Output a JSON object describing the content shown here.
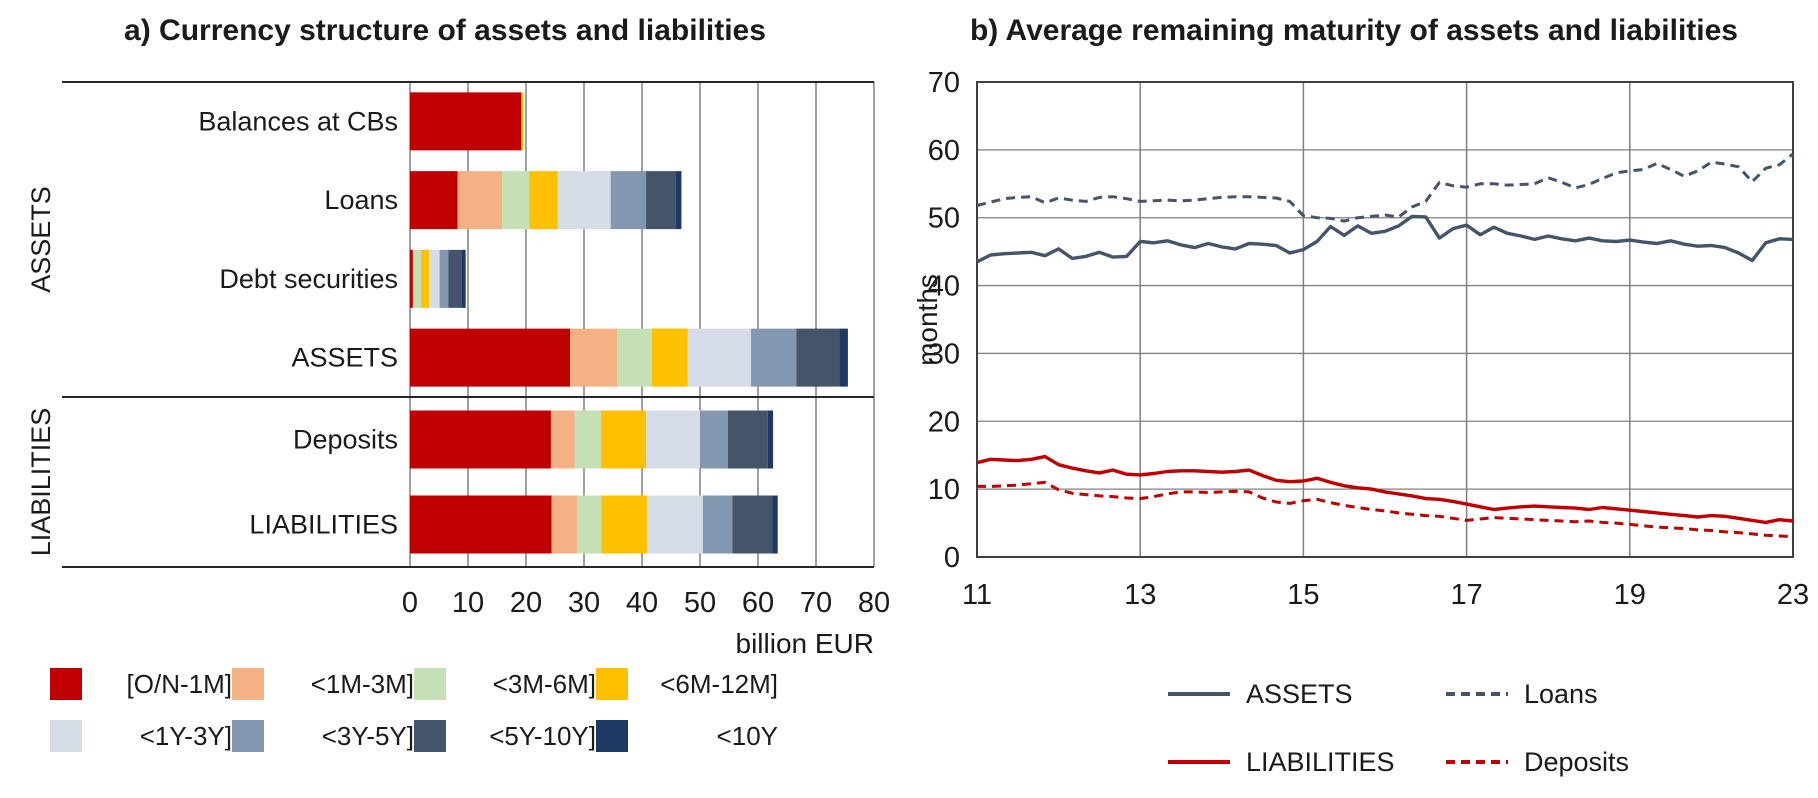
{
  "panel_a": {
    "title": "a) Currency structure of assets and liabilities",
    "axis_caption": "billion EUR",
    "section_labels": [
      "ASSETS",
      "LIABILITIES"
    ]
  },
  "panel_b": {
    "title": "b) Average remaining maturity of assets and liabilities",
    "ylabel": "months"
  },
  "colors": {
    "grid": "#808080",
    "frame_left": "#262626",
    "frame_right": "#404040",
    "text": "#1a1a1a"
  },
  "chart_data": [
    {
      "type": "bar",
      "orientation": "horizontal",
      "title": "a) Currency structure of assets and liabilities",
      "xlabel": "billion EUR",
      "xlim": [
        0,
        80
      ],
      "xticks": [
        0,
        10,
        20,
        30,
        40,
        50,
        60,
        70,
        80
      ],
      "grid": true,
      "legend_position": "bottom",
      "sections": [
        {
          "label": "ASSETS",
          "rows": 4
        },
        {
          "label": "LIABILITIES",
          "rows": 2
        }
      ],
      "categories": [
        "Balances at CBs",
        "Loans",
        "Debt securities",
        "ASSETS",
        "Deposits",
        "LIABILITIES"
      ],
      "series": [
        {
          "name": "[O/N-1M]",
          "color": "#c00000",
          "values": [
            19.2,
            8.2,
            0.5,
            27.6,
            24.3,
            24.4
          ]
        },
        {
          "name": "<1M-3M]",
          "color": "#f4b183",
          "values": [
            0,
            7.7,
            0,
            8.1,
            4.1,
            4.4
          ]
        },
        {
          "name": "<3M-6M]",
          "color": "#c5e0b4",
          "values": [
            0,
            4.7,
            1.4,
            6.0,
            4.5,
            4.2
          ]
        },
        {
          "name": "<6M-12M]",
          "color": "#ffc000",
          "values": [
            0.3,
            4.9,
            1.4,
            6.2,
            7.8,
            7.9
          ]
        },
        {
          "name": "<1Y-3Y]",
          "color": "#d6dce5",
          "values": [
            0,
            9.1,
            1.8,
            10.9,
            9.3,
            9.6
          ]
        },
        {
          "name": "<3Y-5Y]",
          "color": "#8497b0",
          "values": [
            0,
            6.1,
            1.5,
            7.8,
            4.8,
            5.1
          ]
        },
        {
          "name": "<5Y-10Y]",
          "color": "#44546a",
          "values": [
            0,
            5.1,
            2.3,
            7.4,
            6.9,
            6.9
          ]
        },
        {
          "name": "<10Y",
          "color": "#1f3864",
          "values": [
            0,
            1.0,
            0.7,
            1.5,
            0.9,
            0.9
          ]
        }
      ]
    },
    {
      "type": "line",
      "title": "b) Average remaining maturity of assets and liabilities",
      "ylabel": "months",
      "ylim": [
        0,
        70
      ],
      "yticks": [
        0,
        10,
        20,
        30,
        40,
        50,
        60,
        70
      ],
      "xtick_labels": [
        "11",
        "13",
        "15",
        "17",
        "19",
        "23"
      ],
      "grid": true,
      "legend_position": "bottom",
      "series": [
        {
          "name": "ASSETS",
          "color": "#44546a",
          "style": "solid",
          "values": [
            43.5,
            44.5,
            44.7,
            44.8,
            44.9,
            44.4,
            45.4,
            44.0,
            44.3,
            44.9,
            44.2,
            44.3,
            46.5,
            46.3,
            46.6,
            46.0,
            45.6,
            46.2,
            45.7,
            45.4,
            46.2,
            46.1,
            45.9,
            44.8,
            45.3,
            46.5,
            48.7,
            47.4,
            48.8,
            47.7,
            48.0,
            48.8,
            50.2,
            50.1,
            47.0,
            48.4,
            48.9,
            47.5,
            48.6,
            47.7,
            47.3,
            46.8,
            47.3,
            46.9,
            46.6,
            47.0,
            46.6,
            46.5,
            46.7,
            46.4,
            46.2,
            46.6,
            46.1,
            45.8,
            45.9,
            45.6,
            44.8,
            43.7,
            46.3,
            46.9,
            46.8
          ]
        },
        {
          "name": "Loans",
          "color": "#44546a",
          "style": "dashed",
          "values": [
            51.8,
            52.3,
            52.8,
            53.0,
            53.1,
            52.2,
            52.9,
            52.6,
            52.4,
            53.0,
            53.1,
            52.8,
            52.4,
            52.5,
            52.6,
            52.5,
            52.6,
            52.8,
            53.0,
            53.1,
            53.1,
            53.0,
            52.9,
            52.4,
            50.3,
            50.0,
            49.9,
            49.5,
            50.0,
            50.2,
            50.4,
            50.1,
            51.6,
            52.4,
            55.2,
            54.7,
            54.5,
            55.0,
            55.0,
            54.8,
            54.9,
            55.0,
            55.9,
            55.2,
            54.4,
            54.9,
            55.8,
            56.6,
            56.9,
            57.1,
            58.0,
            57.1,
            56.1,
            56.9,
            58.2,
            57.9,
            57.5,
            55.3,
            57.3,
            57.8,
            59.4
          ]
        },
        {
          "name": "LIABILITIES",
          "color": "#c00000",
          "style": "solid",
          "values": [
            13.9,
            14.4,
            14.3,
            14.2,
            14.4,
            14.8,
            13.6,
            13.1,
            12.7,
            12.4,
            12.8,
            12.2,
            12.1,
            12.3,
            12.6,
            12.7,
            12.7,
            12.6,
            12.5,
            12.6,
            12.8,
            12.0,
            11.3,
            11.1,
            11.2,
            11.6,
            11.0,
            10.5,
            10.2,
            10.0,
            9.6,
            9.3,
            9.0,
            8.6,
            8.5,
            8.2,
            7.8,
            7.4,
            7.0,
            7.2,
            7.4,
            7.5,
            7.4,
            7.3,
            7.2,
            7.0,
            7.3,
            7.1,
            6.9,
            6.7,
            6.5,
            6.3,
            6.1,
            5.9,
            6.1,
            6.0,
            5.7,
            5.4,
            5.1,
            5.5,
            5.3
          ]
        },
        {
          "name": "Deposits",
          "color": "#c00000",
          "style": "dashed",
          "values": [
            10.4,
            10.4,
            10.5,
            10.6,
            10.8,
            11.0,
            9.9,
            9.4,
            9.2,
            9.0,
            8.9,
            8.7,
            8.6,
            8.9,
            9.3,
            9.6,
            9.6,
            9.5,
            9.6,
            9.7,
            9.6,
            8.7,
            8.1,
            7.9,
            8.3,
            8.5,
            8.0,
            7.6,
            7.3,
            7.0,
            6.8,
            6.5,
            6.3,
            6.1,
            6.0,
            5.7,
            5.4,
            5.6,
            5.8,
            5.7,
            5.6,
            5.5,
            5.4,
            5.3,
            5.2,
            5.3,
            5.1,
            5.0,
            4.8,
            4.6,
            4.4,
            4.3,
            4.2,
            4.0,
            3.9,
            3.7,
            3.6,
            3.4,
            3.2,
            3.1,
            3.0
          ]
        }
      ]
    }
  ]
}
